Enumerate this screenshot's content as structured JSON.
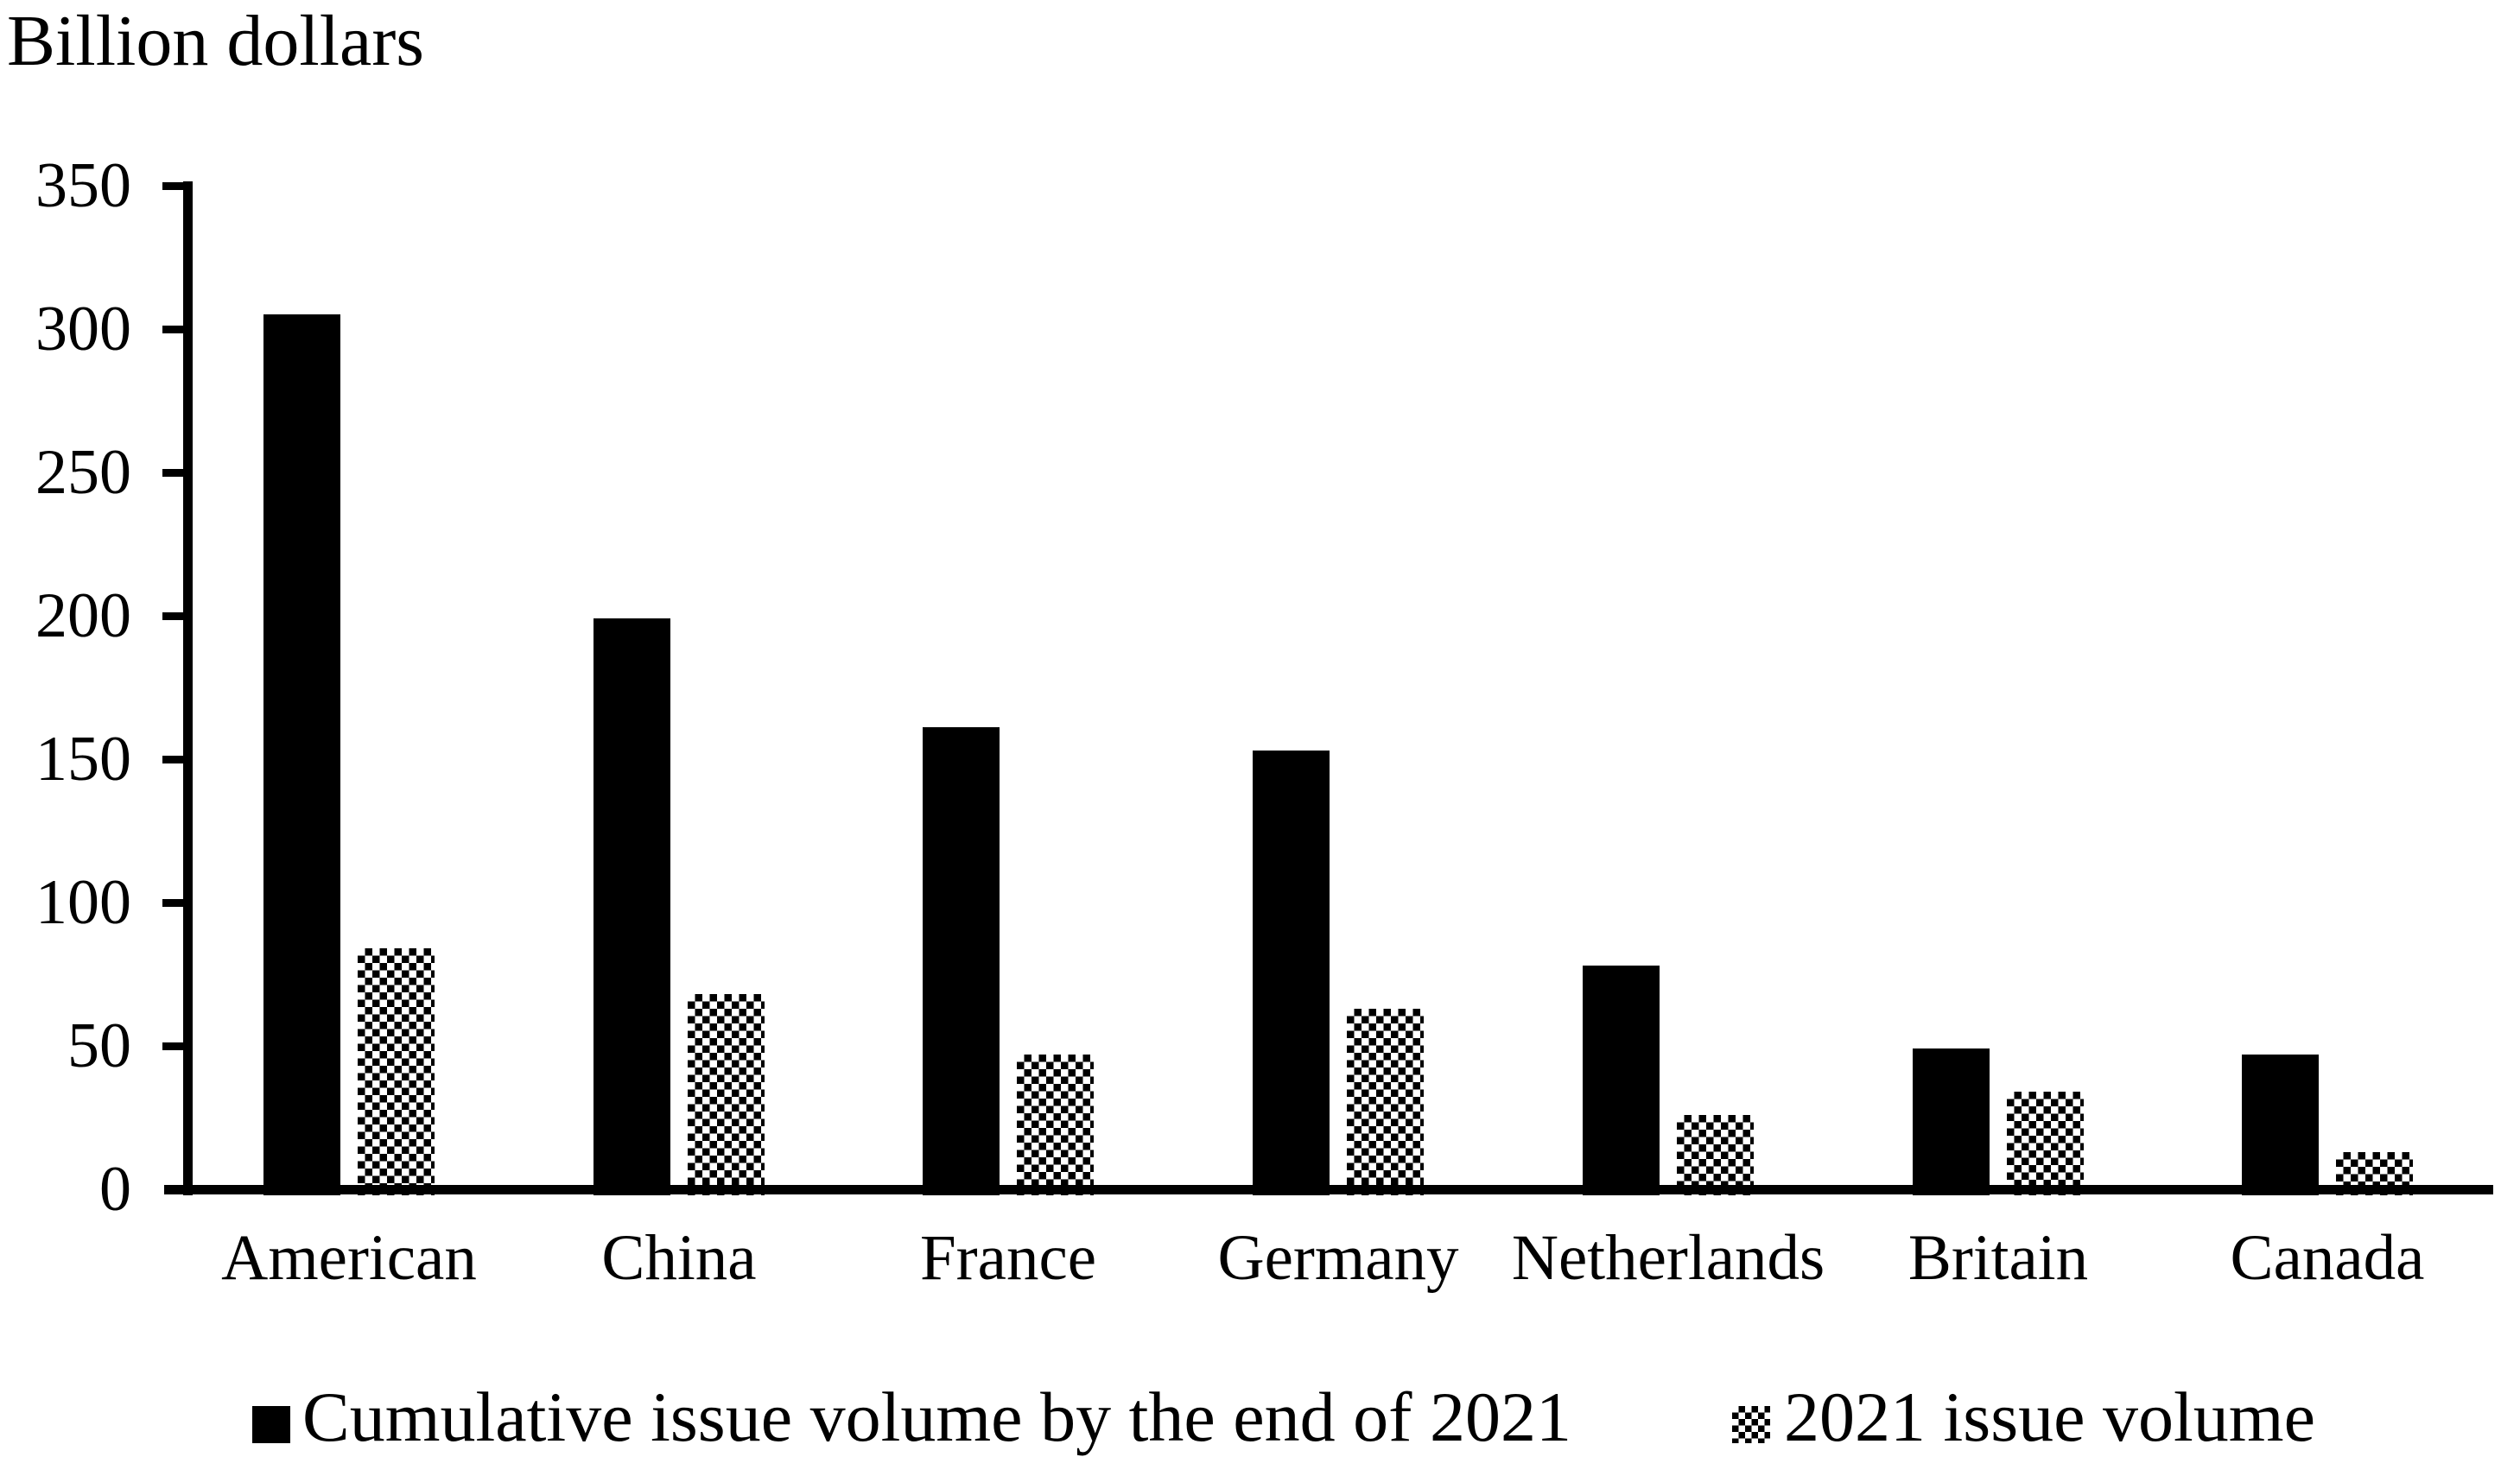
{
  "title": "Billion dollars",
  "chart_data": {
    "type": "bar",
    "title": "Billion dollars",
    "xlabel": "",
    "ylabel": "Billion dollars",
    "categories": [
      "American",
      "China",
      "France",
      "Germany",
      "Netherlands",
      "Britain",
      "Canada"
    ],
    "series": [
      {
        "name": "Cumulative issue volume by the end of 2021",
        "fill": "solid-black",
        "values": [
          305,
          199,
          161,
          153,
          78,
          49,
          47
        ]
      },
      {
        "name": "2021 issue volume",
        "fill": "black-white-checkerboard",
        "values": [
          84,
          68,
          47,
          63,
          26,
          34,
          13
        ]
      }
    ],
    "ylim": [
      0,
      350
    ],
    "ytick_interval": 50,
    "yticks": [
      0,
      50,
      100,
      150,
      200,
      250,
      300,
      350
    ],
    "grid": false,
    "legend_position": "bottom-center",
    "axis_color": "#000000",
    "bar_color": "#000000",
    "background_color": "#ffffff"
  },
  "legend": {
    "items": [
      {
        "label": "Cumulative issue volume by the end of 2021",
        "swatch": "solid-square-icon"
      },
      {
        "label": "2021 issue volume",
        "swatch": "checker-square-icon"
      }
    ]
  }
}
